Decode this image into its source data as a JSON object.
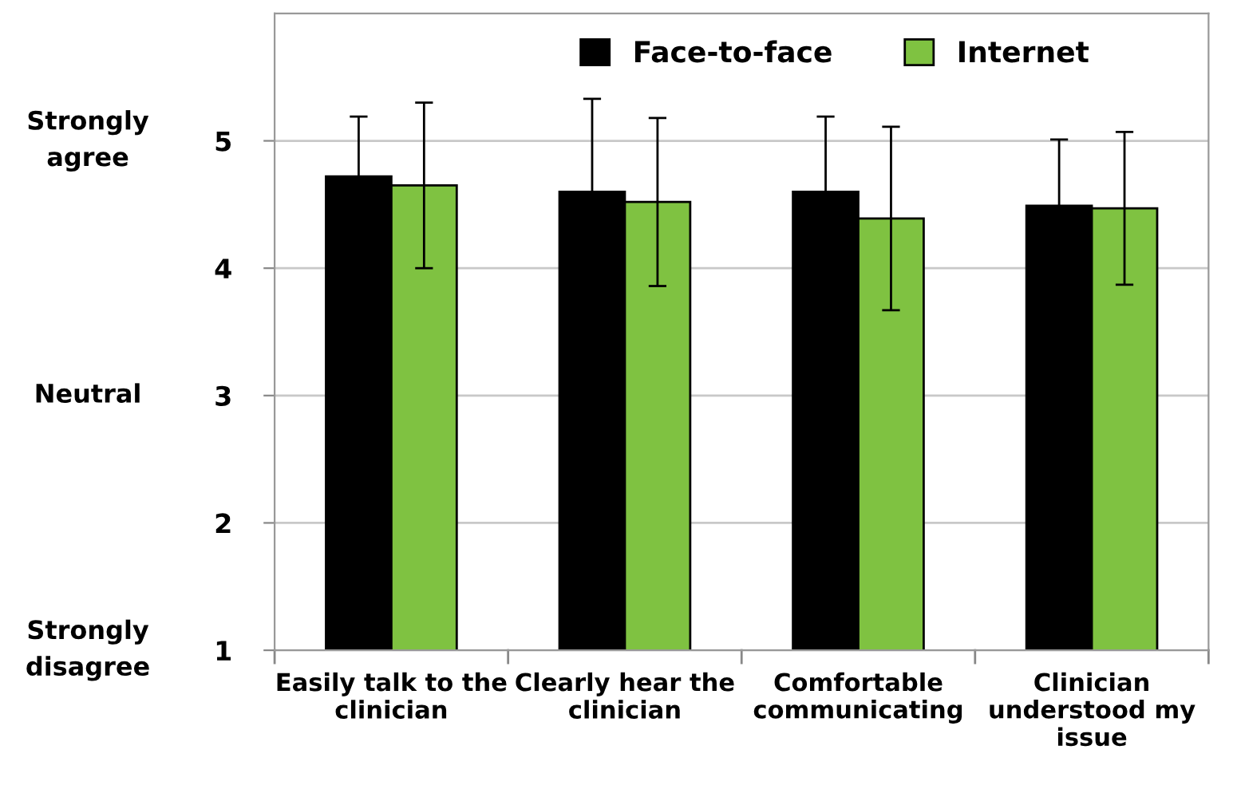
{
  "chart_data": {
    "type": "bar",
    "categories": [
      "Easily talk to the clinician",
      "Clearly hear the clinician",
      "Comfortable communicating",
      "Clinician understood my issue"
    ],
    "series": [
      {
        "name": "Face-to-face",
        "color": "#000000",
        "values": [
          4.72,
          4.6,
          4.6,
          4.49
        ],
        "errors": [
          0.47,
          0.73,
          0.59,
          0.52
        ]
      },
      {
        "name": "Internet",
        "color": "#7fc241",
        "values": [
          4.65,
          4.52,
          4.39,
          4.47
        ],
        "errors": [
          0.65,
          0.66,
          0.72,
          0.6
        ]
      }
    ],
    "ylim": [
      1,
      6
    ],
    "yticks": [
      1,
      2,
      3,
      4,
      5
    ],
    "grid": "y",
    "legend": "top",
    "annotations": [
      "Strongly\nagree",
      "Neutral",
      "Strongly\ndisagree"
    ]
  }
}
